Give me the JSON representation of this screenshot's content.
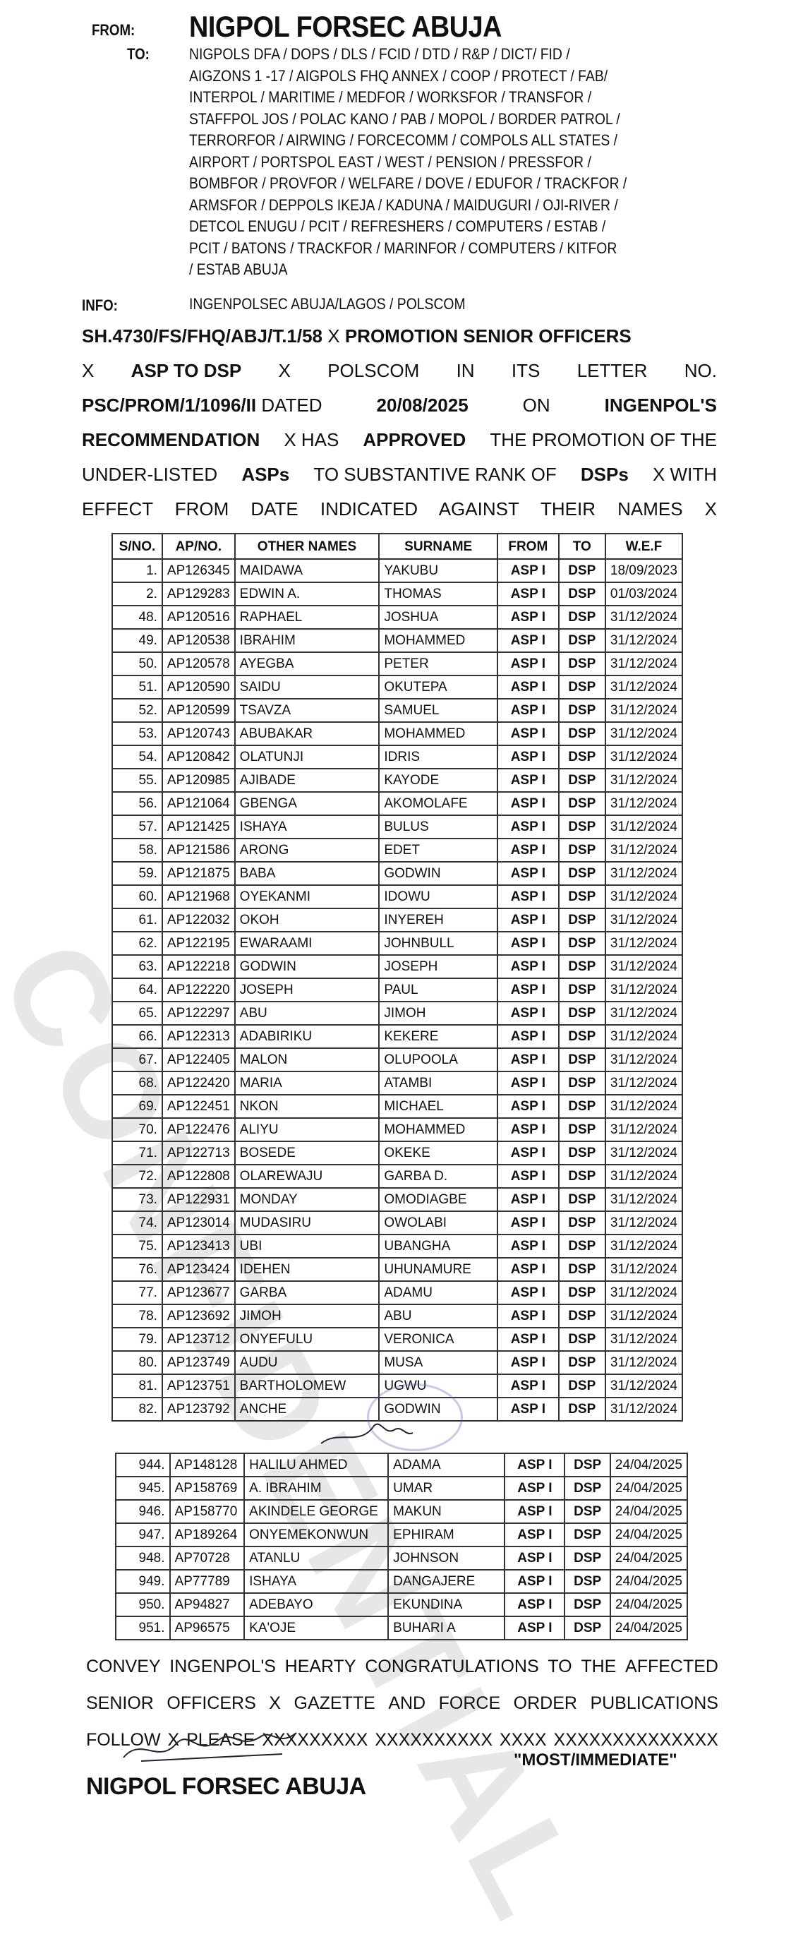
{
  "header": {
    "from_label": "FROM:",
    "from_value": "NIGPOL FORSEC ABUJA",
    "to_label": "TO:",
    "to_lines": [
      "NIGPOLS DFA / DOPS / DLS / FCID / DTD / R&P / DICT/ FID /",
      "AIGZONS 1 -17 / AIGPOLS FHQ ANNEX / COOP / PROTECT / FAB/",
      "INTERPOL / MARITIME / MEDFOR / WORKSFOR / TRANSFOR /",
      "STAFFPOL JOS / POLAC KANO / PAB / MOPOL / BORDER PATROL /",
      "TERRORFOR / AIRWING / FORCECOMM / COMPOLS ALL STATES /",
      "AIRPORT / PORTSPOL EAST / WEST / PENSION / PRESSFOR /",
      "BOMBFOR / PROVFOR / WELFARE / DOVE / EDUFOR / TRACKFOR /",
      "ARMSFOR / DEPPOLS IKEJA / KADUNA / MAIDUGURI / OJI-RIVER /",
      "DETCOL ENUGU / PCIT / REFRESHERS / COMPUTERS / ESTAB /",
      "PCIT / BATONS / TRACKFOR / MARINFOR / COMPUTERS / KITFOR",
      "/ ESTAB ABUJA"
    ],
    "info_label": "INFO:",
    "info_value": "INGENPOLSEC ABUJA/LAGOS / POLSCOM"
  },
  "body": {
    "line1_ref": "SH.4730/FS/FHQ/ABJ/T.1/58",
    "line1_x": "X",
    "line1_subject": "PROMOTION SENIOR OFFICERS",
    "line2_x1": "X",
    "line2_bold": "ASP TO DSP",
    "line2_x2": "X",
    "line2_rest": [
      "POLSCOM",
      "IN",
      "ITS",
      "LETTER",
      "NO."
    ],
    "line3_ref": "PSC/PROM/1/1096/II",
    "line3_dated": "DATED",
    "line3_date": "20/08/2025",
    "line3_on": "ON",
    "line3_ingenpol": "INGENPOL'S",
    "line4_rec": "RECOMMENDATION",
    "line4_x": "X HAS",
    "line4_approved": "APPROVED",
    "line4_rest": "THE PROMOTION OF THE",
    "line5_a": "UNDER-LISTED",
    "line5_asps": "ASPs",
    "line5_b": "TO SUBSTANTIVE RANK OF",
    "line5_dsps": "DSPs",
    "line5_c": "X WITH",
    "line6": "EFFECT FROM DATE INDICATED AGAINST THEIR NAMES X"
  },
  "table": {
    "columns": [
      "S/NO.",
      "AP/NO.",
      "OTHER NAMES",
      "SURNAME",
      "FROM",
      "TO",
      "W.E.F"
    ],
    "rows_part1": [
      [
        "1.",
        "AP126345",
        "MAIDAWA",
        "YAKUBU",
        "ASP I",
        "DSP",
        "18/09/2023"
      ],
      [
        "2.",
        "AP129283",
        "EDWIN A.",
        "THOMAS",
        "ASP I",
        "DSP",
        "01/03/2024"
      ],
      [
        "48.",
        "AP120516",
        "RAPHAEL",
        "JOSHUA",
        "ASP I",
        "DSP",
        "31/12/2024"
      ],
      [
        "49.",
        "AP120538",
        "IBRAHIM",
        "MOHAMMED",
        "ASP I",
        "DSP",
        "31/12/2024"
      ],
      [
        "50.",
        "AP120578",
        "AYEGBA",
        "PETER",
        "ASP I",
        "DSP",
        "31/12/2024"
      ],
      [
        "51.",
        "AP120590",
        "SAIDU",
        "OKUTEPA",
        "ASP I",
        "DSP",
        "31/12/2024"
      ],
      [
        "52.",
        "AP120599",
        "TSAVZA",
        "SAMUEL",
        "ASP I",
        "DSP",
        "31/12/2024"
      ],
      [
        "53.",
        "AP120743",
        "ABUBAKAR",
        "MOHAMMED",
        "ASP I",
        "DSP",
        "31/12/2024"
      ],
      [
        "54.",
        "AP120842",
        "OLATUNJI",
        "IDRIS",
        "ASP I",
        "DSP",
        "31/12/2024"
      ],
      [
        "55.",
        "AP120985",
        "AJIBADE",
        "KAYODE",
        "ASP I",
        "DSP",
        "31/12/2024"
      ],
      [
        "56.",
        "AP121064",
        "GBENGA",
        "AKOMOLAFE",
        "ASP I",
        "DSP",
        "31/12/2024"
      ],
      [
        "57.",
        "AP121425",
        "ISHAYA",
        "BULUS",
        "ASP I",
        "DSP",
        "31/12/2024"
      ],
      [
        "58.",
        "AP121586",
        "ARONG",
        "EDET",
        "ASP I",
        "DSP",
        "31/12/2024"
      ],
      [
        "59.",
        "AP121875",
        "BABA",
        "GODWIN",
        "ASP I",
        "DSP",
        "31/12/2024"
      ],
      [
        "60.",
        "AP121968",
        "OYEKANMI",
        "IDOWU",
        "ASP I",
        "DSP",
        "31/12/2024"
      ],
      [
        "61.",
        "AP122032",
        "OKOH",
        "INYEREH",
        "ASP I",
        "DSP",
        "31/12/2024"
      ],
      [
        "62.",
        "AP122195",
        "EWARAAMI",
        "JOHNBULL",
        "ASP I",
        "DSP",
        "31/12/2024"
      ],
      [
        "63.",
        "AP122218",
        "GODWIN",
        "JOSEPH",
        "ASP I",
        "DSP",
        "31/12/2024"
      ],
      [
        "64.",
        "AP122220",
        "JOSEPH",
        "PAUL",
        "ASP I",
        "DSP",
        "31/12/2024"
      ],
      [
        "65.",
        "AP122297",
        "ABU",
        "JIMOH",
        "ASP I",
        "DSP",
        "31/12/2024"
      ],
      [
        "66.",
        "AP122313",
        "ADABIRIKU",
        "KEKERE",
        "ASP I",
        "DSP",
        "31/12/2024"
      ],
      [
        "67.",
        "AP122405",
        "MALON",
        "OLUPOOLA",
        "ASP I",
        "DSP",
        "31/12/2024"
      ],
      [
        "68.",
        "AP122420",
        "MARIA",
        "ATAMBI",
        "ASP I",
        "DSP",
        "31/12/2024"
      ],
      [
        "69.",
        "AP122451",
        "NKON",
        "MICHAEL",
        "ASP I",
        "DSP",
        "31/12/2024"
      ],
      [
        "70.",
        "AP122476",
        "ALIYU",
        "MOHAMMED",
        "ASP I",
        "DSP",
        "31/12/2024"
      ],
      [
        "71.",
        "AP122713",
        "BOSEDE",
        "OKEKE",
        "ASP I",
        "DSP",
        "31/12/2024"
      ],
      [
        "72.",
        "AP122808",
        "OLAREWAJU",
        "GARBA D.",
        "ASP I",
        "DSP",
        "31/12/2024"
      ],
      [
        "73.",
        "AP122931",
        "MONDAY",
        "OMODIAGBE",
        "ASP I",
        "DSP",
        "31/12/2024"
      ],
      [
        "74.",
        "AP123014",
        "MUDASIRU",
        "OWOLABI",
        "ASP I",
        "DSP",
        "31/12/2024"
      ],
      [
        "75.",
        "AP123413",
        "UBI",
        "UBANGHA",
        "ASP I",
        "DSP",
        "31/12/2024"
      ],
      [
        "76.",
        "AP123424",
        "IDEHEN",
        "UHUNAMURE",
        "ASP I",
        "DSP",
        "31/12/2024"
      ],
      [
        "77.",
        "AP123677",
        "GARBA",
        "ADAMU",
        "ASP I",
        "DSP",
        "31/12/2024"
      ],
      [
        "78.",
        "AP123692",
        "JIMOH",
        "ABU",
        "ASP I",
        "DSP",
        "31/12/2024"
      ],
      [
        "79.",
        "AP123712",
        "ONYEFULU",
        "VERONICA",
        "ASP I",
        "DSP",
        "31/12/2024"
      ],
      [
        "80.",
        "AP123749",
        "AUDU",
        "MUSA",
        "ASP I",
        "DSP",
        "31/12/2024"
      ],
      [
        "81.",
        "AP123751",
        "BARTHOLOMEW",
        "UGWU",
        "ASP I",
        "DSP",
        "31/12/2024"
      ],
      [
        "82.",
        "AP123792",
        "ANCHE",
        "GODWIN",
        "ASP I",
        "DSP",
        "31/12/2024"
      ]
    ],
    "rows_part2": [
      [
        "944.",
        "AP148128",
        "HALILU AHMED",
        "ADAMA",
        "ASP I",
        "DSP",
        "24/04/2025"
      ],
      [
        "945.",
        "AP158769",
        "A. IBRAHIM",
        "UMAR",
        "ASP I",
        "DSP",
        "24/04/2025"
      ],
      [
        "946.",
        "AP158770",
        "AKINDELE GEORGE",
        "MAKUN",
        "ASP I",
        "DSP",
        "24/04/2025"
      ],
      [
        "947.",
        "AP189264",
        "ONYEMEKONWUN",
        "EPHIRAM",
        "ASP I",
        "DSP",
        "24/04/2025"
      ],
      [
        "948.",
        "AP70728",
        "ATANLU",
        "JOHNSON",
        "ASP I",
        "DSP",
        "24/04/2025"
      ],
      [
        "949.",
        "AP77789",
        "ISHAYA",
        "DANGAJERE",
        "ASP I",
        "DSP",
        "24/04/2025"
      ],
      [
        "950.",
        "AP94827",
        "ADEBAYO",
        "EKUNDINA",
        "ASP I",
        "DSP",
        "24/04/2025"
      ],
      [
        "951.",
        "AP96575",
        "KA'OJE",
        "BUHARI A",
        "ASP I",
        "DSP",
        "24/04/2025"
      ]
    ]
  },
  "closing": {
    "lines": [
      [
        "CONVEY",
        "INGENPOL'S",
        "HEARTY",
        "CONGRATULATIONS",
        "TO",
        "THE",
        "AFFECTED"
      ],
      [
        "SENIOR",
        "OFFICERS",
        "X",
        "GAZETTE",
        "AND",
        "FORCE",
        "ORDER",
        "PUBLICATIONS"
      ],
      [
        "FOLLOW",
        "X",
        "PLEASE",
        "XXXXXXXXX",
        "XXXXXXXXXX",
        "XXXX",
        "XXXXXXXXXXXXXX"
      ]
    ],
    "priority": "\"MOST/IMMEDIATE\"",
    "signatory": "NIGPOL FORSEC ABUJA"
  },
  "watermark": "CONFIDENTIAL"
}
